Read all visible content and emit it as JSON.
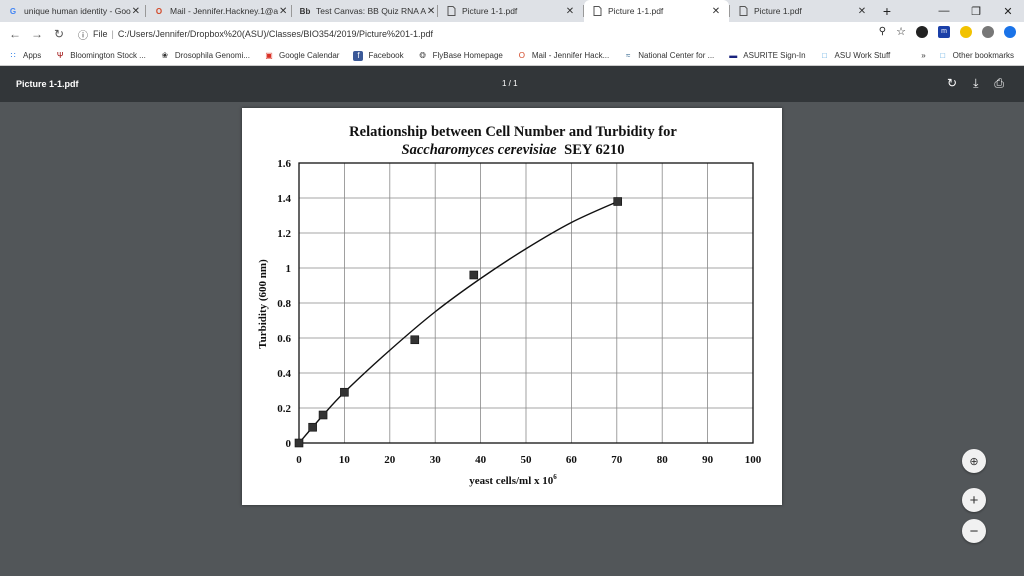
{
  "tabs": [
    {
      "title": "unique human identity - Goo",
      "icon": "G",
      "icon_color": "#4285f4"
    },
    {
      "title": "Mail - Jennifer.Hackney.1@a",
      "icon": "O",
      "icon_color": "#d24726"
    },
    {
      "title": "Test Canvas: BB Quiz RNA A",
      "icon": "Bb",
      "icon_color": "#333333"
    },
    {
      "title": "Picture 1-1.pdf",
      "icon": "doc"
    },
    {
      "title": "Picture 1-1.pdf",
      "icon": "doc"
    },
    {
      "title": "Picture 1.pdf",
      "icon": "doc"
    }
  ],
  "active_tab": 4,
  "omnibox": {
    "scheme": "File",
    "url": "C:/Users/Jennifer/Dropbox%20(ASU)/Classes/BIO354/2019/Picture%201-1.pdf"
  },
  "bookmarks": [
    {
      "label": "Apps",
      "icon": "apps-grid-icon"
    },
    {
      "label": "Bloomington Stock ...",
      "icon": "iu-icon"
    },
    {
      "label": "Drosophila Genomi...",
      "icon": "fly-icon"
    },
    {
      "label": "Google Calendar",
      "icon": "calendar-icon"
    },
    {
      "label": "Facebook",
      "icon": "facebook-icon"
    },
    {
      "label": "FlyBase Homepage",
      "icon": "flybase-icon"
    },
    {
      "label": "Mail - Jennifer Hack...",
      "icon": "outlook-icon"
    },
    {
      "label": "National Center for ...",
      "icon": "ncbi-icon"
    },
    {
      "label": "ASURITE Sign-In",
      "icon": "asu-icon"
    },
    {
      "label": "ASU Work Stuff",
      "icon": "folder-icon"
    }
  ],
  "bookmarks_more": "»",
  "other_bookmarks": "Other bookmarks",
  "pdf": {
    "title": "Picture 1-1.pdf",
    "page_indicator": "1 / 1"
  },
  "chart_data": {
    "type": "scatter",
    "title_line1": "Relationship between Cell Number and Turbidity for",
    "title_line2_italic": "Saccharomyces cerevisiae",
    "title_line2_rest": "SEY 6210",
    "xlabel": "yeast cells/ml x 10",
    "xlabel_sup": "6",
    "ylabel": "Turbidity (600 nm)",
    "xlim": [
      0,
      100
    ],
    "ylim": [
      0,
      1.6
    ],
    "xticks": [
      0,
      10,
      20,
      30,
      40,
      50,
      60,
      70,
      80,
      90,
      100
    ],
    "yticks": [
      0,
      0.2,
      0.4,
      0.6,
      0.8,
      1,
      1.2,
      1.4,
      1.6
    ],
    "ytick_labels": [
      "0",
      "0.2",
      "0.4",
      "0.6",
      "0.8",
      "1",
      "1.2",
      "1.4",
      "1.6"
    ],
    "grid": true,
    "points": [
      {
        "x": 0,
        "y": 0
      },
      {
        "x": 3,
        "y": 0.09
      },
      {
        "x": 5.3,
        "y": 0.16
      },
      {
        "x": 10,
        "y": 0.29
      },
      {
        "x": 25.5,
        "y": 0.59
      },
      {
        "x": 38.5,
        "y": 0.96
      },
      {
        "x": 70.2,
        "y": 1.38
      }
    ],
    "fit_curve": [
      [
        0,
        0
      ],
      [
        5,
        0.15
      ],
      [
        10,
        0.29
      ],
      [
        20,
        0.53
      ],
      [
        30,
        0.75
      ],
      [
        40,
        0.94
      ],
      [
        50,
        1.11
      ],
      [
        60,
        1.26
      ],
      [
        70.2,
        1.38
      ]
    ]
  }
}
